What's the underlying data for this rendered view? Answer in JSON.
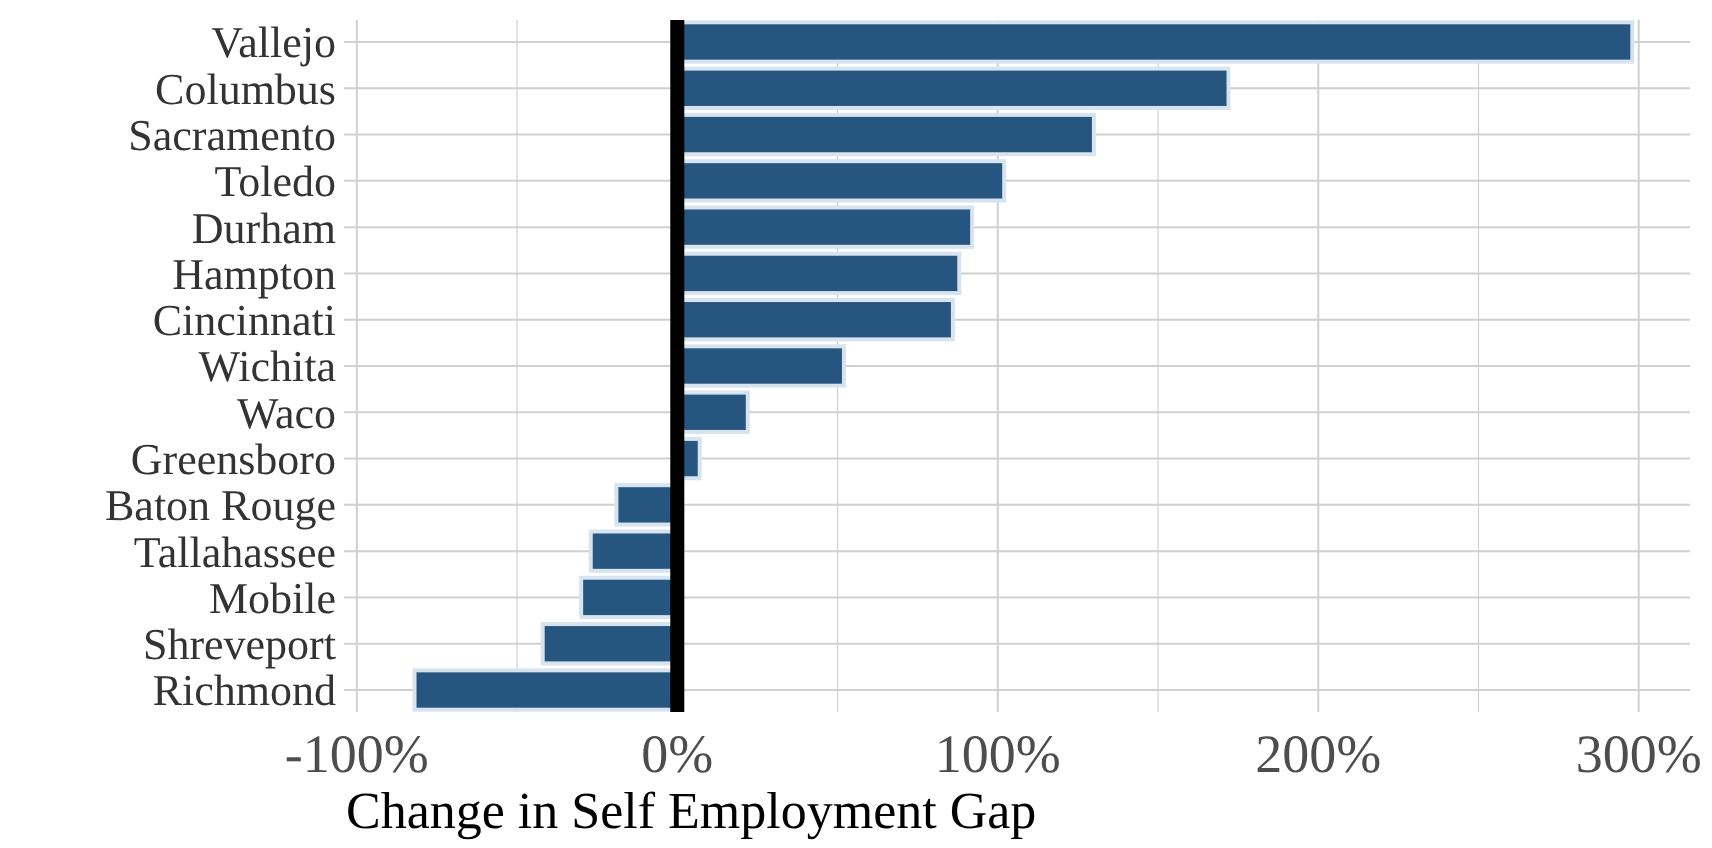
{
  "chart_data": {
    "type": "bar",
    "orientation": "horizontal",
    "xlabel": "Change in Self Employment Gap",
    "categories": [
      "Vallejo",
      "Columbus",
      "Sacramento",
      "Toledo",
      "Durham",
      "Hampton",
      "Cincinnati",
      "Wichita",
      "Waco",
      "Greensboro",
      "Baton Rouge",
      "Tallahassee",
      "Mobile",
      "Shreveport",
      "Richmond"
    ],
    "values": [
      298,
      172,
      130,
      102,
      92,
      88,
      86,
      52,
      22,
      7,
      -19,
      -27,
      -30,
      -42,
      -82
    ],
    "color": "#26557f",
    "xlim": [
      -104,
      316
    ],
    "xticks": [
      {
        "value": -100,
        "label": "-100%"
      },
      {
        "value": -50,
        "label": null
      },
      {
        "value": 0,
        "label": "0%"
      },
      {
        "value": 50,
        "label": null
      },
      {
        "value": 100,
        "label": "100%"
      },
      {
        "value": 150,
        "label": null
      },
      {
        "value": 200,
        "label": "200%"
      },
      {
        "value": 250,
        "label": null
      },
      {
        "value": 300,
        "label": "300%"
      }
    ],
    "ref_lines": [
      {
        "axis": "x",
        "value": 0,
        "color": "#000000"
      }
    ],
    "grid": true
  }
}
